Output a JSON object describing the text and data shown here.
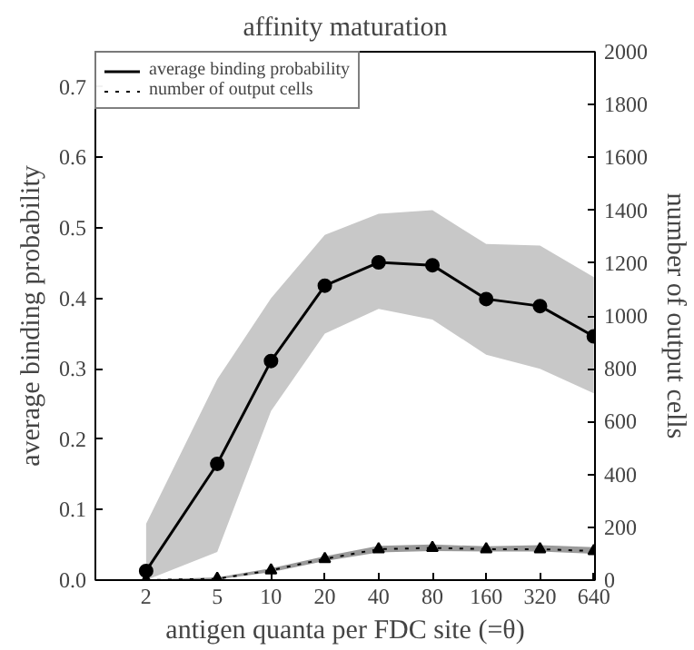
{
  "chart_data": {
    "type": "line",
    "title": "affinity maturation",
    "xlabel": "antigen quanta per FDC site (=θ)",
    "ylabel": "average binding probability",
    "y2label": "number of output cells",
    "x": [
      2,
      5,
      10,
      20,
      40,
      80,
      160,
      320,
      640
    ],
    "log": "x",
    "xlim": [
      1.04,
      650
    ],
    "xticks": [
      2,
      5,
      10,
      20,
      40,
      80,
      160,
      320,
      640
    ],
    "ylim": [
      0,
      0.75
    ],
    "yticks": [
      {
        "value": 0,
        "label": "0.0"
      },
      0.1,
      0.2,
      0.3,
      0.4,
      0.5,
      0.6,
      0.7
    ],
    "y2lim": [
      0,
      2000
    ],
    "y2ticks": [
      0,
      200,
      400,
      600,
      800,
      1000,
      1200,
      1400,
      1600,
      1800,
      2000
    ],
    "grid": false,
    "legend": "top left",
    "series": [
      {
        "name": "average binding probability",
        "color": "#000000",
        "marker": "circle",
        "line_style": "solid",
        "values": [
          0.013,
          0.165,
          0.311,
          0.418,
          0.451,
          0.447,
          0.399,
          0.389,
          0.346
        ],
        "lower": [
          0.0,
          0.04,
          0.24,
          0.35,
          0.385,
          0.37,
          0.32,
          0.3,
          0.265
        ],
        "upper": [
          0.08,
          0.285,
          0.4,
          0.49,
          0.52,
          0.525,
          0.477,
          0.475,
          0.43
        ]
      },
      {
        "name": "number of output cells",
        "color": "#000000",
        "marker": "triangle",
        "line_style": "dotted",
        "axis": "y2",
        "values": [
          0,
          5,
          37,
          80,
          117,
          122,
          117,
          117,
          110
        ],
        "lower": [
          0,
          2,
          30,
          72,
          105,
          110,
          108,
          108,
          100
        ],
        "upper": [
          2,
          10,
          45,
          90,
          130,
          135,
          128,
          132,
          125
        ]
      }
    ]
  }
}
